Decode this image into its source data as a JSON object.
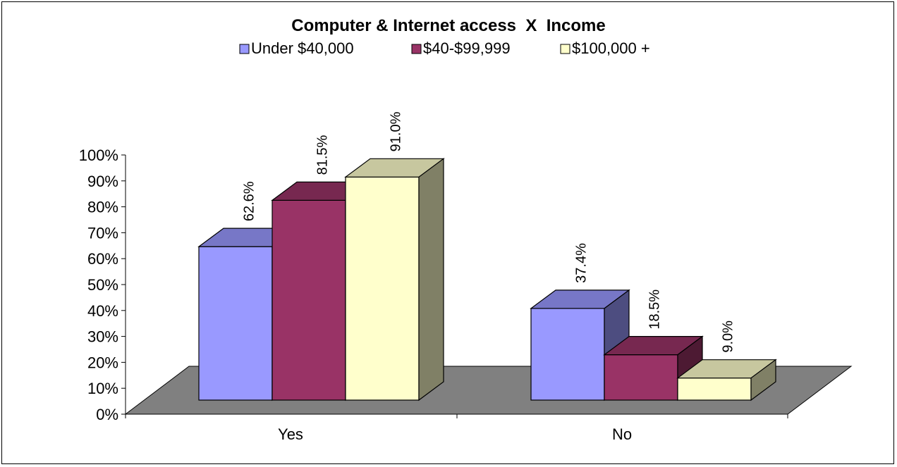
{
  "chart_data": {
    "type": "bar",
    "title": "Computer & Internet access  X  Income",
    "xlabel": "",
    "ylabel": "",
    "categories": [
      "Yes",
      "No"
    ],
    "series": [
      {
        "name": "Under $40,000",
        "values": [
          62.6,
          37.4
        ],
        "labels": [
          "62.6%",
          "37.4%"
        ],
        "color": "#9999FF"
      },
      {
        "name": "$40-$99,999",
        "values": [
          81.5,
          18.5
        ],
        "labels": [
          "81.5%",
          "18.5%"
        ],
        "color": "#993366"
      },
      {
        "name": "$100,000 +",
        "values": [
          91.0,
          9.0
        ],
        "labels": [
          "91.0%",
          "9.0%"
        ],
        "color": "#FFFFCC"
      }
    ],
    "ylim": [
      0,
      100
    ],
    "yticks": [
      "0%",
      "10%",
      "20%",
      "30%",
      "40%",
      "50%",
      "60%",
      "70%",
      "80%",
      "90%",
      "100%"
    ],
    "grid": false,
    "legend_position": "top",
    "style": "3d-clustered-column",
    "floor_color": "#808080"
  }
}
